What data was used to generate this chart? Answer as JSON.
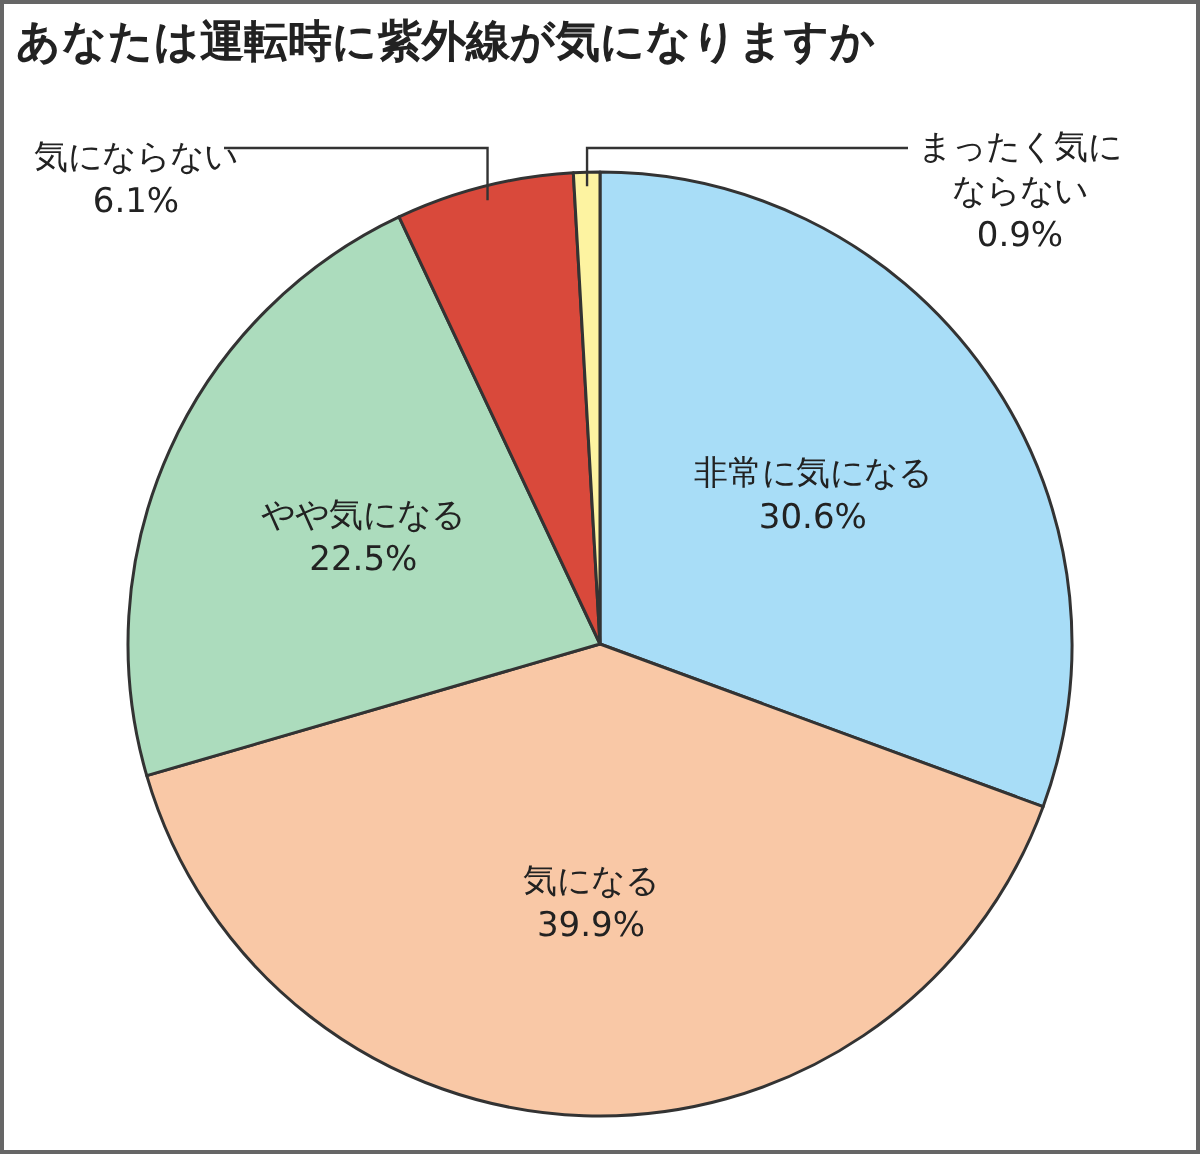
{
  "chart_data": {
    "type": "pie",
    "title": "あなたは運転時に紫外線が気になりますか",
    "categories": [
      "非常に気になる",
      "気になる",
      "やや気になる",
      "気にならない",
      "まったく気にならない"
    ],
    "values": [
      30.6,
      39.9,
      22.5,
      6.1,
      0.9
    ],
    "colors": [
      "#a8ddf7",
      "#f9c8a6",
      "#acdcbd",
      "#d9493b",
      "#fdf3a1"
    ],
    "value_labels": [
      "30.6%",
      "39.9%",
      "22.5%",
      "6.1%",
      "0.9%"
    ]
  }
}
